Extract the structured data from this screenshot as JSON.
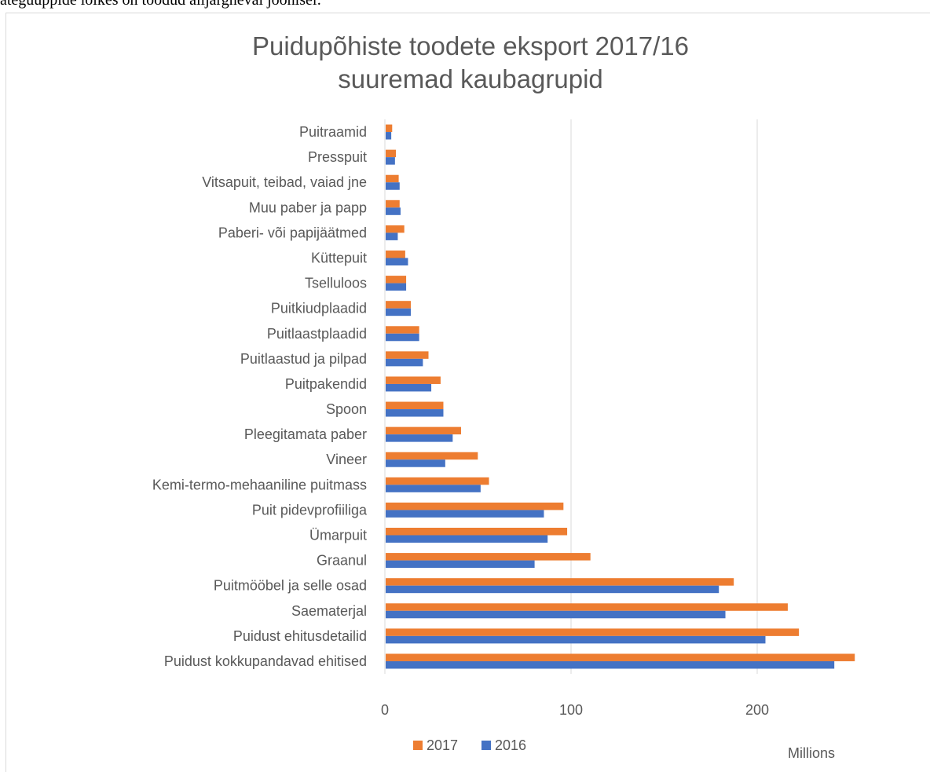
{
  "page": {
    "top_caption": "ategüüppide lõikes on toodud alljärgneval joonisel:"
  },
  "chart_data": {
    "type": "bar",
    "orientation": "horizontal",
    "title": "Puidupõhiste toodete eksport 2017/16",
    "subtitle": "suuremad kaubagrupid",
    "xlabel": "",
    "ylabel": "",
    "display_unit": "Millions",
    "xlim": [
      0,
      250
    ],
    "xticks": [
      0,
      100,
      200
    ],
    "grid": true,
    "legend_position": "bottom",
    "categories": [
      "Puitraamid",
      "Presspuit",
      "Vitsapuit, teibad, vaiad jne",
      "Muu paber ja papp",
      "Paberi- või papijäätmed",
      "Küttepuit",
      "Tselluloos",
      "Puitkiudplaadid",
      "Puitlaastplaadid",
      "Puitlaastud ja pilpad",
      "Puitpakendid",
      "Spoon",
      "Pleegitamata paber",
      "Vineer",
      "Kemi-termo-mehaaniline puitmass",
      "Puit pidevprofiiliga",
      "Ümarpuit",
      "Graanul",
      "Puitmööbel ja selle osad",
      "Saematerjal",
      "Puidust ehitusdetailid",
      "Puidust kokkupandavad ehitised"
    ],
    "series": [
      {
        "name": "2017",
        "color": "#ed7d31",
        "values": [
          3.5,
          5.5,
          7,
          7.5,
          10,
          10.5,
          11,
          13.5,
          18,
          23,
          29.5,
          31,
          40.5,
          49.5,
          55.5,
          95.5,
          97.5,
          110,
          187,
          216,
          222,
          252
        ]
      },
      {
        "name": "2016",
        "color": "#4472c4",
        "values": [
          3,
          5,
          7.5,
          8,
          6.5,
          12,
          11,
          13.5,
          18,
          20,
          24.5,
          31,
          36,
          32,
          51,
          85,
          87,
          80,
          179,
          182.5,
          204,
          241
        ]
      }
    ],
    "legend": [
      {
        "label": "2017",
        "color": "#ed7d31"
      },
      {
        "label": "2016",
        "color": "#4472c4"
      }
    ]
  }
}
